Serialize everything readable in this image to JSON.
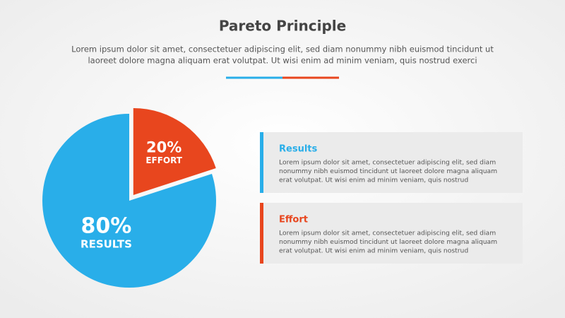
{
  "chart_data": {
    "type": "pie",
    "title": "Pareto Principle",
    "subtitle_lines": [
      "Lorem ipsum dolor sit amet, consectetuer adipiscing elit, sed diam nonummy nibh euismod tincidunt ut",
      "laoreet dolore magna aliquam erat volutpat. Ut wisi enim ad minim veniam, quis nostrud exerci"
    ],
    "categories": [
      "Results",
      "Effort"
    ],
    "slice_labels": [
      "RESULTS",
      "EFFORT"
    ],
    "values": [
      80,
      20
    ],
    "value_labels": [
      "80%",
      "20%"
    ],
    "colors": [
      "#29aee9",
      "#e8461e"
    ],
    "explode": [
      0,
      0.08
    ],
    "descriptions": [
      [
        "Lorem ipsum dolor sit amet, consectetuer adipiscing elit, sed diam",
        "nonummy nibh euismod tincidunt ut laoreet dolore magna aliquam",
        "erat volutpat. Ut wisi enim ad minim veniam, quis nostrud"
      ],
      [
        "Lorem ipsum dolor sit amet, consectetuer adipiscing elit, sed diam",
        "nonummy nibh euismod tincidunt ut laoreet dolore magna aliquam",
        "erat volutpat. Ut wisi enim ad minim veniam, quis nostrud"
      ]
    ]
  }
}
